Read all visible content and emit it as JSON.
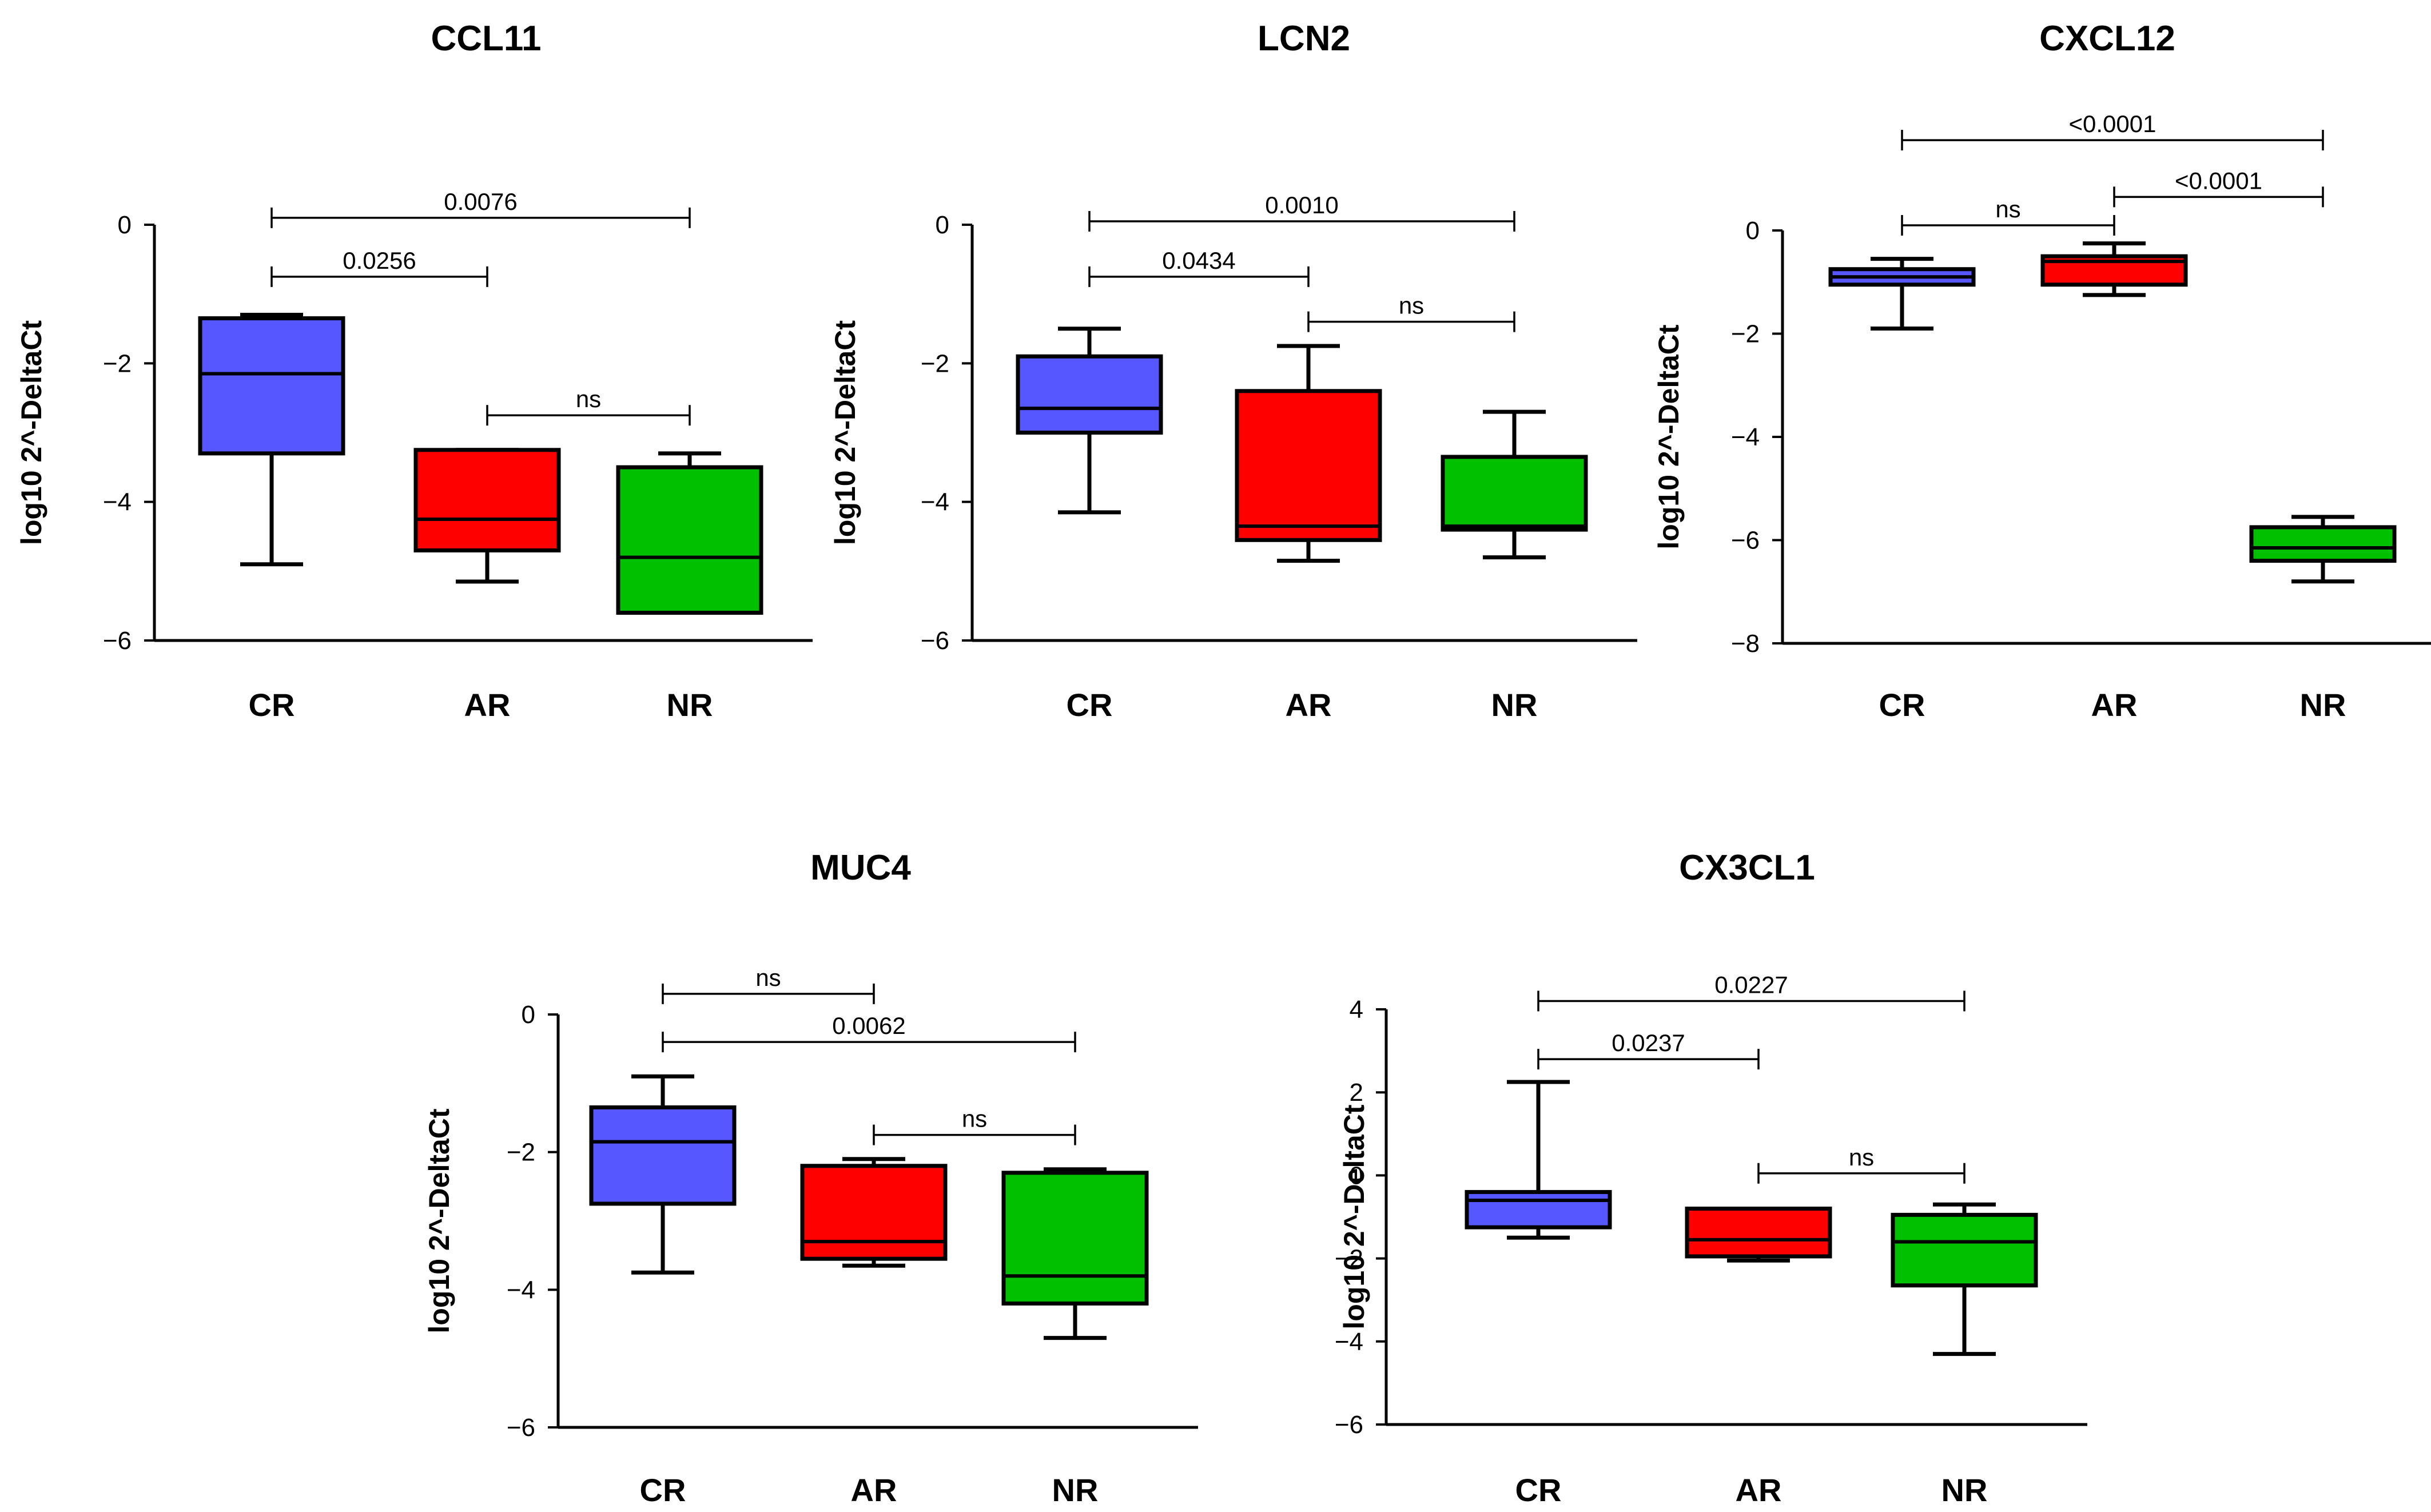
{
  "colors": {
    "CR": "#5757ff",
    "AR": "#ff0000",
    "NR": "#00c000",
    "axis": "#000000"
  },
  "chart_data": [
    {
      "type": "boxplot",
      "title": "CCL11",
      "ylabel": "log10 2^-DeltaCt",
      "ylim": [
        -6,
        0
      ],
      "yticks": [
        0,
        -2,
        -4,
        -6
      ],
      "ytick_labels": [
        "0",
        "−2",
        "−4",
        "−6"
      ],
      "categories": [
        "CR",
        "AR",
        "NR"
      ],
      "boxes": [
        {
          "group": "CR",
          "min": -4.9,
          "q1": -3.3,
          "median": -2.15,
          "q3": -1.35,
          "max": -1.3
        },
        {
          "group": "AR",
          "min": -5.15,
          "q1": -4.7,
          "median": -4.25,
          "q3": -3.25,
          "max": -3.25
        },
        {
          "group": "NR",
          "min": -5.6,
          "q1": -5.6,
          "median": -4.8,
          "q3": -3.5,
          "max": -3.3
        }
      ],
      "comparisons": [
        {
          "from": 0,
          "to": 2,
          "label": "0.0076",
          "y": 0.1
        },
        {
          "from": 0,
          "to": 1,
          "label": "0.0256",
          "y": -0.75
        },
        {
          "from": 1,
          "to": 2,
          "label": "ns",
          "y": -2.75
        }
      ]
    },
    {
      "type": "boxplot",
      "title": "LCN2",
      "ylabel": "log10 2^-DeltaCt",
      "ylim": [
        -6,
        0
      ],
      "yticks": [
        0,
        -2,
        -4,
        -6
      ],
      "ytick_labels": [
        "0",
        "−2",
        "−4",
        "−6"
      ],
      "categories": [
        "CR",
        "AR",
        "NR"
      ],
      "boxes": [
        {
          "group": "CR",
          "min": -4.15,
          "q1": -3.0,
          "median": -2.65,
          "q3": -1.9,
          "max": -1.5
        },
        {
          "group": "AR",
          "min": -4.85,
          "q1": -4.55,
          "median": -4.35,
          "q3": -2.4,
          "max": -1.75
        },
        {
          "group": "NR",
          "min": -4.8,
          "q1": -4.4,
          "median": -4.35,
          "q3": -3.35,
          "max": -2.7
        }
      ],
      "comparisons": [
        {
          "from": 0,
          "to": 2,
          "label": "0.0010",
          "y": 0.05
        },
        {
          "from": 0,
          "to": 1,
          "label": "0.0434",
          "y": -0.75
        },
        {
          "from": 1,
          "to": 2,
          "label": "ns",
          "y": -1.4
        }
      ]
    },
    {
      "type": "boxplot",
      "title": "CXCL12",
      "ylabel": "log10 2^-DeltaCt",
      "ylim": [
        -8,
        0
      ],
      "yticks": [
        0,
        -2,
        -4,
        -6,
        -8
      ],
      "ytick_labels": [
        "0",
        "−2",
        "−4",
        "−6",
        "−8"
      ],
      "categories": [
        "CR",
        "AR",
        "NR"
      ],
      "boxes": [
        {
          "group": "CR",
          "min": -1.9,
          "q1": -1.05,
          "median": -0.9,
          "q3": -0.75,
          "max": -0.55
        },
        {
          "group": "AR",
          "min": -1.25,
          "q1": -1.05,
          "median": -0.6,
          "q3": -0.5,
          "max": -0.25
        },
        {
          "group": "NR",
          "min": -6.8,
          "q1": -6.4,
          "median": -6.15,
          "q3": -5.75,
          "max": -5.55
        }
      ],
      "comparisons": [
        {
          "from": 0,
          "to": 2,
          "label": "<0.0001",
          "y": 1.75
        },
        {
          "from": 0,
          "to": 1,
          "label": "ns",
          "y": 0.1
        },
        {
          "from": 1,
          "to": 2,
          "label": "<0.0001",
          "y": 0.65
        }
      ]
    },
    {
      "type": "boxplot",
      "title": "MUC4",
      "ylabel": "log10 2^-DeltaCt",
      "ylim": [
        -6,
        0
      ],
      "yticks": [
        0,
        -2,
        -4,
        -6
      ],
      "ytick_labels": [
        "0",
        "−2",
        "−4",
        "−6"
      ],
      "categories": [
        "CR",
        "AR",
        "NR"
      ],
      "boxes": [
        {
          "group": "CR",
          "min": -3.75,
          "q1": -2.75,
          "median": -1.85,
          "q3": -1.35,
          "max": -0.9
        },
        {
          "group": "AR",
          "min": -3.65,
          "q1": -3.55,
          "median": -3.3,
          "q3": -2.2,
          "max": -2.1
        },
        {
          "group": "NR",
          "min": -4.7,
          "q1": -4.2,
          "median": -3.8,
          "q3": -2.3,
          "max": -2.25
        }
      ],
      "comparisons": [
        {
          "from": 0,
          "to": 1,
          "label": "ns",
          "y": 0.3
        },
        {
          "from": 0,
          "to": 2,
          "label": "0.0062",
          "y": -0.4
        },
        {
          "from": 1,
          "to": 2,
          "label": "ns",
          "y": -1.75
        }
      ]
    },
    {
      "type": "boxplot",
      "title": "CX3CL1",
      "ylabel": "log10 2^-DeltaCt",
      "ylim": [
        -6,
        4
      ],
      "yticks": [
        4,
        2,
        0,
        -2,
        -4,
        -6
      ],
      "ytick_labels": [
        "4",
        "2",
        "0",
        "−2",
        "−4",
        "−6"
      ],
      "categories": [
        "CR",
        "AR",
        "NR"
      ],
      "boxes": [
        {
          "group": "CR",
          "min": -1.5,
          "q1": -1.25,
          "median": -0.6,
          "q3": -0.4,
          "max": 2.25
        },
        {
          "group": "AR",
          "min": -2.05,
          "q1": -1.95,
          "median": -1.55,
          "q3": -0.8,
          "max": -0.8
        },
        {
          "group": "NR",
          "min": -4.3,
          "q1": -2.65,
          "median": -1.6,
          "q3": -0.95,
          "max": -0.7
        }
      ],
      "comparisons": [
        {
          "from": 0,
          "to": 2,
          "label": "0.0227",
          "y": 4.2
        },
        {
          "from": 0,
          "to": 1,
          "label": "0.0237",
          "y": 2.8
        },
        {
          "from": 1,
          "to": 2,
          "label": "ns",
          "y": 0.05
        }
      ]
    }
  ]
}
